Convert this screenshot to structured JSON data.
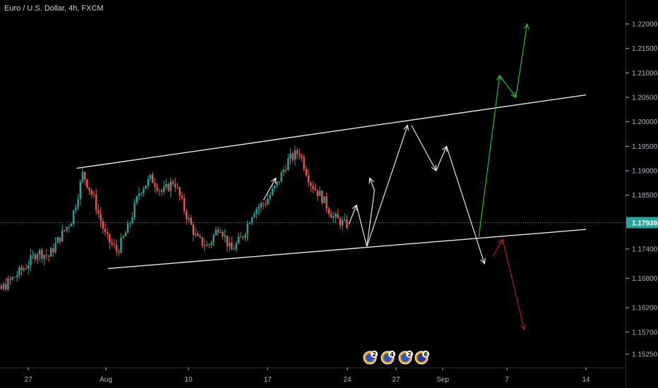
{
  "chart_title": "Euro / U.S. Dollar, 4h, FXCM",
  "colors": {
    "background": "#000000",
    "up": "#26a69a",
    "down": "#ef5350",
    "channel": "#e6e6e6",
    "path_white": "#e6e6e6",
    "path_green": "#22bb33",
    "path_red": "#b01c1c",
    "price_tag": "#26a69a",
    "axis_text": "#b2b5be"
  },
  "chart_data": {
    "type": "candlestick",
    "symbol": "Euro / U.S. Dollar",
    "interval": "4h",
    "source": "FXCM",
    "last_price": "1.17939",
    "y_tick_labels": [
      "1.22000",
      "1.21500",
      "1.21000",
      "1.20500",
      "1.20000",
      "1.19500",
      "1.19000",
      "1.18500",
      "1.17939",
      "1.17400",
      "1.16800",
      "1.16200",
      "1.15700",
      "1.15250"
    ],
    "y_tick_values": [
      1.22,
      1.215,
      1.21,
      1.205,
      1.2,
      1.195,
      1.19,
      1.185,
      1.17939,
      1.174,
      1.168,
      1.162,
      1.157,
      1.1525
    ],
    "x_tick_labels": [
      "27",
      "Aug",
      "10",
      "17",
      "24",
      "27",
      "Sep",
      "7",
      "14"
    ],
    "x_tick_dates": [
      "2020-07-27",
      "2020-08-03",
      "2020-08-10",
      "2020-08-17",
      "2020-08-24",
      "2020-08-27",
      "2020-09-01",
      "2020-09-07",
      "2020-09-14"
    ],
    "ylim": [
      1.1515,
      1.2235
    ],
    "xlim": [
      "2020-07-22",
      "2020-09-16"
    ],
    "price_anchors": [
      [
        "2020-07-22T00:00",
        1.1545
      ],
      [
        "2020-07-23T00:00",
        1.1605
      ],
      [
        "2020-07-24T00:00",
        1.164
      ],
      [
        "2020-07-27T00:00",
        1.1705
      ],
      [
        "2020-07-28T00:00",
        1.1735
      ],
      [
        "2020-07-29T00:00",
        1.1725
      ],
      [
        "2020-07-30T00:00",
        1.1765
      ],
      [
        "2020-07-31T00:00",
        1.18
      ],
      [
        "2020-07-31T12:00",
        1.1845
      ],
      [
        "2020-08-01T00:00",
        1.1895
      ],
      [
        "2020-08-02T00:00",
        1.184
      ],
      [
        "2020-08-03T00:00",
        1.1765
      ],
      [
        "2020-08-04T00:00",
        1.1735
      ],
      [
        "2020-08-05T00:00",
        1.1785
      ],
      [
        "2020-08-06T00:00",
        1.186
      ],
      [
        "2020-08-07T00:00",
        1.1885
      ],
      [
        "2020-08-08T00:00",
        1.1855
      ],
      [
        "2020-08-09T00:00",
        1.188
      ],
      [
        "2020-08-10T00:00",
        1.1815
      ],
      [
        "2020-08-11T00:00",
        1.176
      ],
      [
        "2020-08-12T00:00",
        1.1745
      ],
      [
        "2020-08-13T00:00",
        1.179
      ],
      [
        "2020-08-14T00:00",
        1.1735
      ],
      [
        "2020-08-15T00:00",
        1.1765
      ],
      [
        "2020-08-16T00:00",
        1.182
      ],
      [
        "2020-08-17T00:00",
        1.1835
      ],
      [
        "2020-08-18T00:00",
        1.187
      ],
      [
        "2020-08-19T00:00",
        1.192
      ],
      [
        "2020-08-20T00:00",
        1.194
      ],
      [
        "2020-08-21T00:00",
        1.1875
      ],
      [
        "2020-08-22T00:00",
        1.1845
      ],
      [
        "2020-08-23T00:00",
        1.1805
      ],
      [
        "2020-08-24T00:00",
        1.179
      ]
    ],
    "channel_upper": [
      [
        "2020-07-31T06:00",
        1.1905
      ],
      [
        "2020-09-14T00:00",
        1.2055
      ]
    ],
    "channel_lower": [
      [
        "2020-08-03T00:00",
        1.17
      ],
      [
        "2020-09-14T00:00",
        1.178
      ]
    ],
    "last_price_line": 1.17939,
    "projection_white_1": [
      [
        "2020-08-24T04:00",
        1.179
      ],
      [
        "2020-08-24T20:00",
        1.183
      ],
      [
        "2020-08-25T18:00",
        1.1745
      ],
      [
        "2020-08-26T10:00",
        1.186
      ],
      [
        "2020-08-26T00:00",
        1.1885
      ]
    ],
    "projection_white_2": [
      [
        "2020-08-25T18:00",
        1.1745
      ],
      [
        "2020-08-29T08:00",
        1.1993
      ]
    ],
    "projection_white_3": [
      [
        "2020-08-29T16:00",
        1.1993
      ],
      [
        "2020-08-31T20:00",
        1.19
      ],
      [
        "2020-09-01T18:00",
        1.195
      ],
      [
        "2020-09-05T02:00",
        1.171
      ]
    ],
    "projection_green": [
      [
        "2020-09-04T14:00",
        1.1765
      ],
      [
        "2020-09-06T10:00",
        1.2095
      ],
      [
        "2020-09-07T20:00",
        1.205
      ],
      [
        "2020-09-08T20:00",
        1.22
      ]
    ],
    "projection_red": [
      [
        "2020-09-05T20:00",
        1.1725
      ],
      [
        "2020-09-06T16:00",
        1.176
      ],
      [
        "2020-09-08T14:00",
        1.1575
      ]
    ],
    "small_arrow": [
      [
        "2020-08-16T16:00",
        1.184
      ],
      [
        "2020-08-17T18:00",
        1.1885
      ]
    ]
  },
  "event_badges": [
    "2",
    "4",
    "2",
    "6"
  ]
}
